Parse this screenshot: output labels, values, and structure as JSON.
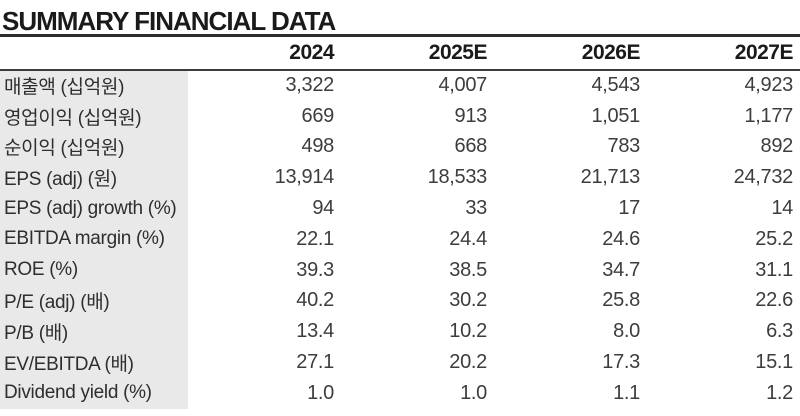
{
  "title": "SUMMARY FINANCIAL DATA",
  "table": {
    "columns": [
      "2024",
      "2025E",
      "2026E",
      "2027E"
    ],
    "rows": [
      {
        "label": "매출액 (십억원)",
        "values": [
          "3,322",
          "4,007",
          "4,543",
          "4,923"
        ]
      },
      {
        "label": "영업이익 (십억원)",
        "values": [
          "669",
          "913",
          "1,051",
          "1,177"
        ]
      },
      {
        "label": "순이익 (십억원)",
        "values": [
          "498",
          "668",
          "783",
          "892"
        ]
      },
      {
        "label": "EPS (adj) (원)",
        "values": [
          "13,914",
          "18,533",
          "21,713",
          "24,732"
        ]
      },
      {
        "label": "EPS (adj) growth (%)",
        "values": [
          "94",
          "33",
          "17",
          "14"
        ]
      },
      {
        "label": "EBITDA margin (%)",
        "values": [
          "22.1",
          "24.4",
          "24.6",
          "25.2"
        ]
      },
      {
        "label": "ROE (%)",
        "values": [
          "39.3",
          "38.5",
          "34.7",
          "31.1"
        ]
      },
      {
        "label": "P/E (adj) (배)",
        "values": [
          "40.2",
          "30.2",
          "25.8",
          "22.6"
        ]
      },
      {
        "label": "P/B (배)",
        "values": [
          "13.4",
          "10.2",
          "8.0",
          "6.3"
        ]
      },
      {
        "label": "EV/EBITDA (배)",
        "values": [
          "27.1",
          "20.2",
          "17.3",
          "15.1"
        ]
      },
      {
        "label": "Dividend yield (%)",
        "values": [
          "1.0",
          "1.0",
          "1.1",
          "1.2"
        ]
      }
    ]
  },
  "colors": {
    "label_bg": "#e9e9e9",
    "rule_heavy": "#2d2d2d",
    "rule_light": "#3c3c3c",
    "text_main": "#1a1a1a",
    "text_data": "#3d3d3d"
  }
}
